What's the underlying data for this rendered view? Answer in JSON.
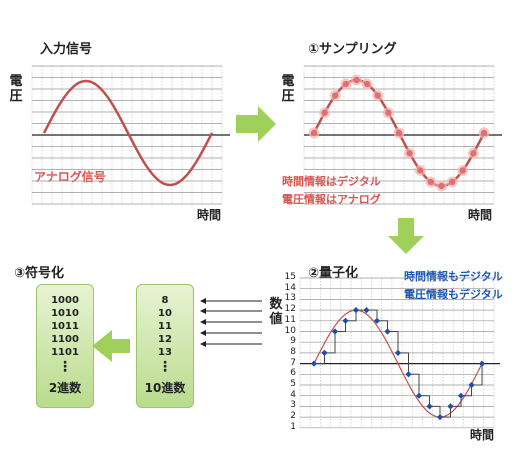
{
  "panels": {
    "input": {
      "title": "入力信号",
      "y_label": "電圧",
      "x_label": "時間",
      "annotation": "アナログ信号"
    },
    "sampling": {
      "title": "①サンプリング",
      "y_label": "電圧",
      "x_label": "時間",
      "note_time": "時間情報はデジタル",
      "note_voltage": "電圧情報はアナログ"
    },
    "quantize": {
      "title": "②量子化",
      "x_label": "時間",
      "y_label": "数値",
      "note_time": "時間情報もデジタル",
      "note_voltage": "電圧情報もデジタル",
      "y_ticks": [
        "15",
        "14",
        "13",
        "12",
        "11",
        "10",
        "9",
        "8",
        "7",
        "6",
        "5",
        "4",
        "3",
        "2",
        "1"
      ]
    },
    "encode": {
      "title": "③符号化"
    }
  },
  "decimal_box": {
    "values": [
      "8",
      "10",
      "11",
      "12",
      "13"
    ],
    "ellipsis": "⋮",
    "label": "10進数"
  },
  "binary_box": {
    "values": [
      "1000",
      "1010",
      "1011",
      "1100",
      "1101"
    ],
    "ellipsis": "⋮",
    "label": "2進数"
  },
  "colors": {
    "wave": "#c0504d",
    "sample": "#e07070",
    "quant": "#1f4fa8",
    "arrow": "#8cc63f",
    "grid": "#bbbbbb"
  },
  "chart_data": {
    "type": "line",
    "quantized_levels": [
      7,
      8,
      10,
      11,
      12,
      12,
      11,
      10,
      8,
      6,
      4,
      3,
      2,
      3,
      4,
      5,
      7
    ]
  }
}
